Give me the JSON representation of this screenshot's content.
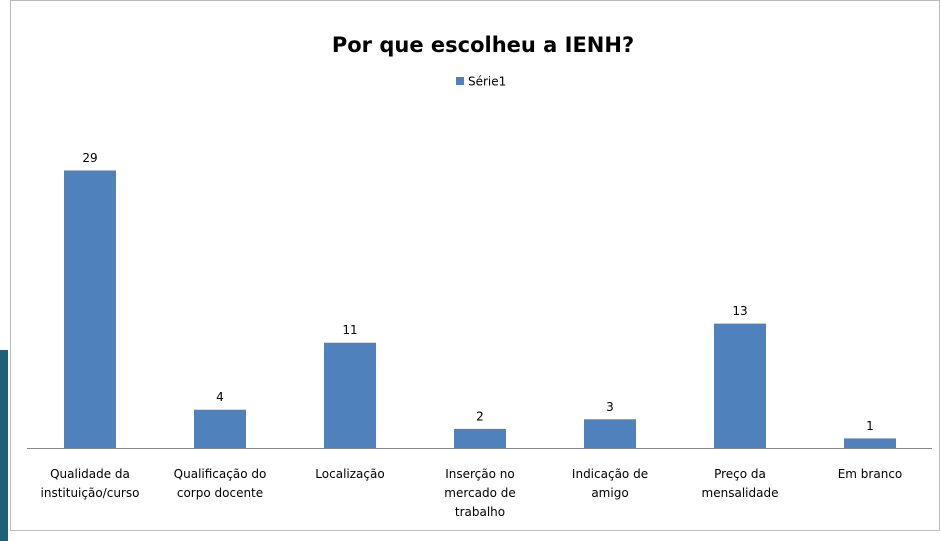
{
  "chart_data": {
    "type": "bar",
    "title": "Por que escolheu a IENH?",
    "categories": [
      "Qualidade da instituição/curso",
      "Qualificação do corpo docente",
      "Localização",
      "Inserção no mercado de trabalho",
      "Indicação de amigo",
      "Preço da mensalidade",
      "Em branco"
    ],
    "series": [
      {
        "name": "Série1",
        "color": "#4f81bd",
        "values": [
          29,
          4,
          11,
          2,
          3,
          13,
          1
        ]
      }
    ],
    "legend": "top"
  }
}
